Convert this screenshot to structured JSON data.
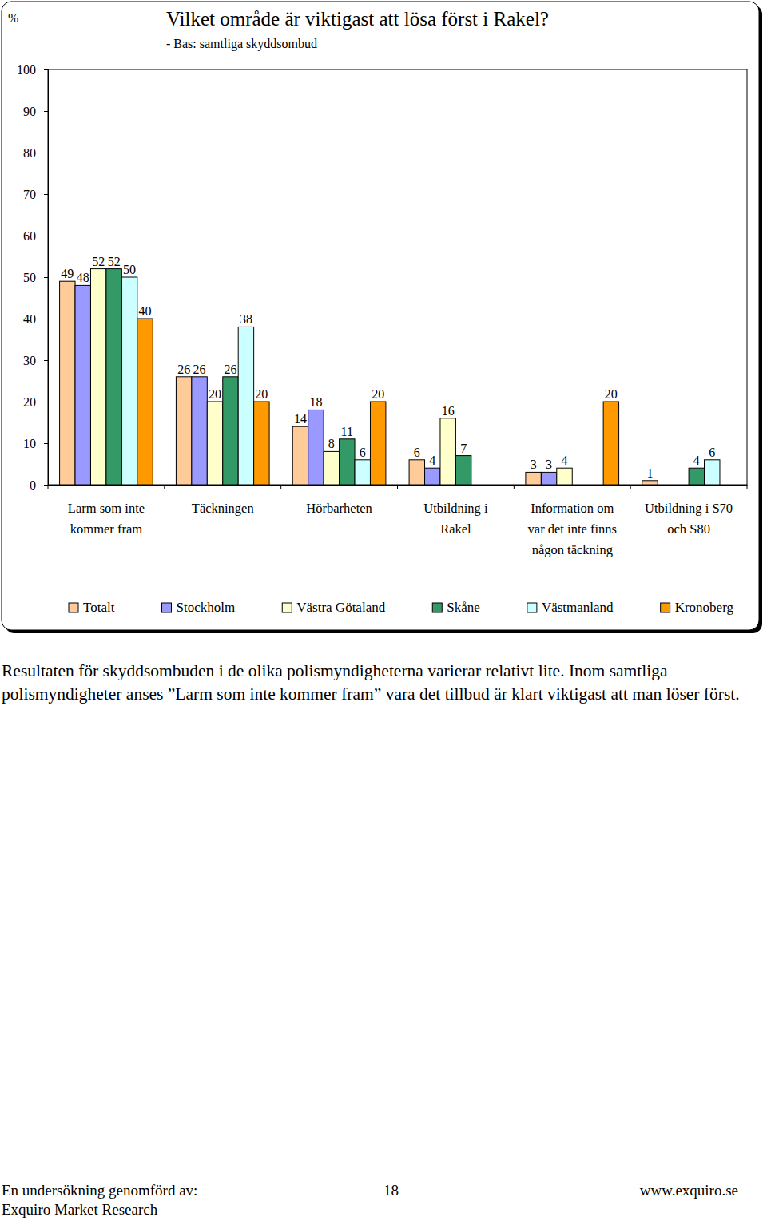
{
  "chart_data": {
    "type": "bar",
    "title": "Vilket område är viktigast att lösa först i Rakel?",
    "subtitle": "- Bas: samtliga skyddsombud",
    "ylabel": "%",
    "categories": [
      "Larm som inte kommer fram",
      "Täckningen",
      "Hörbarheten",
      "Utbildning i Rakel",
      "Information om var det inte finns någon täckning",
      "Utbildning i S70 och S80"
    ],
    "series": [
      {
        "name": "Totalt",
        "color": "#FFCC99",
        "values": [
          49,
          26,
          14,
          6,
          3,
          1
        ]
      },
      {
        "name": "Stockholm",
        "color": "#9999FF",
        "values": [
          48,
          26,
          18,
          4,
          3,
          null
        ]
      },
      {
        "name": "Västra Götaland",
        "color": "#FFFFCC",
        "values": [
          52,
          20,
          8,
          16,
          4,
          null
        ]
      },
      {
        "name": "Skåne",
        "color": "#339966",
        "values": [
          52,
          26,
          11,
          7,
          null,
          4
        ]
      },
      {
        "name": "Västmanland",
        "color": "#CCFFFF",
        "values": [
          50,
          38,
          6,
          null,
          null,
          6
        ]
      },
      {
        "name": "Kronoberg",
        "color": "#FF9900",
        "values": [
          40,
          20,
          20,
          null,
          20,
          null
        ]
      }
    ],
    "ylim": [
      0,
      100
    ],
    "yticks": [
      0,
      10,
      20,
      30,
      40,
      50,
      60,
      70,
      80,
      90,
      100
    ],
    "grid": false,
    "legend": "bottom",
    "data_labels": true
  },
  "body_text": "Resultaten för skyddsombuden i de olika polismyndigheterna varierar relativt lite. Inom samtliga polismyndigheter anses ”Larm som inte kommer fram” vara det tillbud är klart viktigast att man löser först.",
  "footer": {
    "left": [
      "En undersökning genomförd av:",
      "Exquiro Market Research"
    ],
    "page": "18",
    "url": "www.exquiro.se"
  }
}
